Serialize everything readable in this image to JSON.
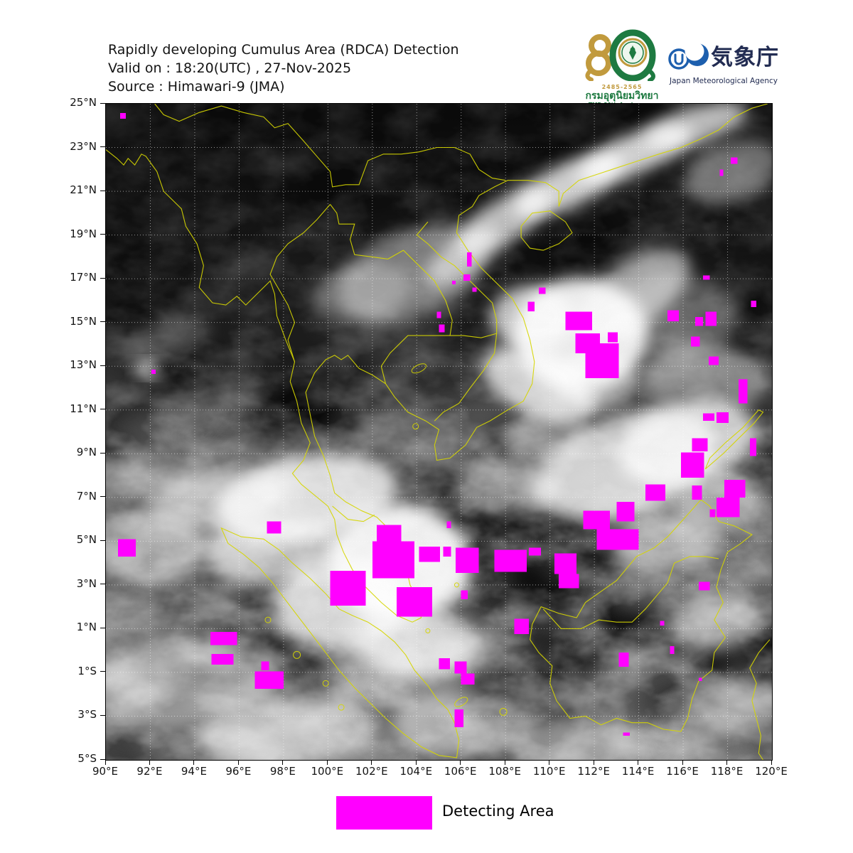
{
  "header": {
    "line1": "Rapidly developing Cumulus Area (RDCA) Detection",
    "line2": "Valid on : 18:20(UTC) , 27-Nov-2025",
    "line3": "Source : Himawari-9 (JMA)"
  },
  "logos": {
    "tmd": {
      "number": "80",
      "years": "2485-2565",
      "thai_name": "กรมอุตุนิยมวิทยา",
      "anniversary": "TMD 80th Anniversary",
      "gold": "#C19A3D",
      "green": "#1E7A41"
    },
    "jma": {
      "name_jp": "気象庁",
      "name_en": "Japan Meteorological Agency",
      "blue": "#1D5FAE",
      "navy": "#222c52"
    }
  },
  "map": {
    "extent": {
      "lon_min": 90,
      "lon_max": 120,
      "lat_max": 25,
      "lat_min": -5
    },
    "grid_step_deg": 2,
    "coastline_color": "#d6d600",
    "detection_color": "#FF00FF",
    "lat_ticks": [
      {
        "deg": 25,
        "label": "25°N"
      },
      {
        "deg": 23,
        "label": "23°N"
      },
      {
        "deg": 21,
        "label": "21°N"
      },
      {
        "deg": 19,
        "label": "19°N"
      },
      {
        "deg": 17,
        "label": "17°N"
      },
      {
        "deg": 15,
        "label": "15°N"
      },
      {
        "deg": 13,
        "label": "13°N"
      },
      {
        "deg": 11,
        "label": "11°N"
      },
      {
        "deg": 9,
        "label": "9°N"
      },
      {
        "deg": 7,
        "label": "7°N"
      },
      {
        "deg": 5,
        "label": "5°N"
      },
      {
        "deg": 3,
        "label": "3°N"
      },
      {
        "deg": 1,
        "label": "1°N"
      },
      {
        "deg": -1,
        "label": "1°S"
      },
      {
        "deg": -3,
        "label": "3°S"
      },
      {
        "deg": -5,
        "label": "5°S"
      }
    ],
    "lon_ticks": [
      {
        "deg": 90,
        "label": "90°E"
      },
      {
        "deg": 92,
        "label": "92°E"
      },
      {
        "deg": 94,
        "label": "94°E"
      },
      {
        "deg": 96,
        "label": "96°E"
      },
      {
        "deg": 98,
        "label": "98°E"
      },
      {
        "deg": 100,
        "label": "100°E"
      },
      {
        "deg": 102,
        "label": "102°E"
      },
      {
        "deg": 104,
        "label": "104°E"
      },
      {
        "deg": 106,
        "label": "106°E"
      },
      {
        "deg": 108,
        "label": "108°E"
      },
      {
        "deg": 110,
        "label": "110°E"
      },
      {
        "deg": 112,
        "label": "112°E"
      },
      {
        "deg": 114,
        "label": "114°E"
      },
      {
        "deg": 116,
        "label": "116°E"
      },
      {
        "deg": 118,
        "label": "118°E"
      },
      {
        "deg": 120,
        "label": "120°E"
      }
    ],
    "detections": [
      [
        90.64,
        24.58,
        0.26,
        0.26
      ],
      [
        92.05,
        12.85,
        0.2,
        0.2
      ],
      [
        90.55,
        5.1,
        0.8,
        0.8
      ],
      [
        97.25,
        5.9,
        0.65,
        0.55
      ],
      [
        94.7,
        0.85,
        1.2,
        0.6
      ],
      [
        94.75,
        -0.15,
        1.0,
        0.5
      ],
      [
        97.0,
        -0.5,
        0.35,
        0.4
      ],
      [
        96.7,
        -0.95,
        1.3,
        0.8
      ],
      [
        100.1,
        3.65,
        1.6,
        1.6
      ],
      [
        102.2,
        5.75,
        1.1,
        0.9
      ],
      [
        102.0,
        5.0,
        1.9,
        1.7
      ],
      [
        103.1,
        2.9,
        1.6,
        1.35
      ],
      [
        104.1,
        4.75,
        0.95,
        0.7
      ],
      [
        105.2,
        4.75,
        0.35,
        0.45
      ],
      [
        105.75,
        4.7,
        1.05,
        1.15
      ],
      [
        105.35,
        5.9,
        0.2,
        0.3
      ],
      [
        106.0,
        2.75,
        0.3,
        0.4
      ],
      [
        107.5,
        4.6,
        1.45,
        1.0
      ],
      [
        109.05,
        4.7,
        0.55,
        0.35
      ],
      [
        108.4,
        1.45,
        0.65,
        0.7
      ],
      [
        105.0,
        -0.35,
        0.5,
        0.5
      ],
      [
        105.7,
        -0.5,
        0.55,
        0.55
      ],
      [
        106.0,
        -1.05,
        0.6,
        0.5
      ],
      [
        105.7,
        -2.7,
        0.4,
        0.8
      ],
      [
        110.2,
        4.45,
        1.0,
        0.95
      ],
      [
        110.4,
        3.5,
        0.9,
        0.65
      ],
      [
        111.5,
        6.4,
        1.2,
        0.85
      ],
      [
        112.1,
        5.55,
        1.9,
        0.95
      ],
      [
        113.0,
        6.8,
        0.8,
        0.9
      ],
      [
        114.3,
        7.6,
        0.9,
        0.75
      ],
      [
        113.1,
        -0.1,
        0.45,
        0.65
      ],
      [
        114.95,
        1.35,
        0.2,
        0.2
      ],
      [
        115.4,
        0.2,
        0.2,
        0.35
      ],
      [
        116.7,
        -1.25,
        0.15,
        0.15
      ],
      [
        113.3,
        -3.75,
        0.3,
        0.15
      ],
      [
        116.7,
        3.15,
        0.5,
        0.4
      ],
      [
        115.9,
        9.05,
        1.05,
        1.15
      ],
      [
        116.4,
        9.7,
        0.7,
        0.6
      ],
      [
        116.4,
        7.55,
        0.45,
        0.65
      ],
      [
        117.2,
        6.45,
        0.25,
        0.35
      ],
      [
        117.85,
        7.8,
        0.95,
        0.8
      ],
      [
        117.5,
        7.0,
        1.05,
        0.9
      ],
      [
        119.0,
        9.7,
        0.3,
        0.8
      ],
      [
        116.9,
        10.85,
        0.5,
        0.35
      ],
      [
        117.5,
        10.9,
        0.55,
        0.5
      ],
      [
        118.5,
        12.4,
        0.4,
        1.1
      ],
      [
        117.15,
        13.45,
        0.45,
        0.4
      ],
      [
        116.35,
        14.35,
        0.4,
        0.45
      ],
      [
        115.3,
        15.55,
        0.5,
        0.5
      ],
      [
        116.55,
        15.25,
        0.35,
        0.4
      ],
      [
        117.0,
        15.5,
        0.5,
        0.65
      ],
      [
        116.9,
        17.15,
        0.3,
        0.2
      ],
      [
        119.05,
        16.0,
        0.25,
        0.3
      ],
      [
        118.15,
        22.55,
        0.3,
        0.3
      ],
      [
        117.65,
        22.0,
        0.15,
        0.3
      ],
      [
        110.7,
        15.5,
        1.2,
        0.85
      ],
      [
        111.15,
        14.5,
        1.1,
        0.9
      ],
      [
        111.6,
        14.05,
        1.5,
        1.6
      ],
      [
        112.6,
        14.55,
        0.45,
        0.45
      ],
      [
        109.5,
        16.6,
        0.3,
        0.3
      ],
      [
        109.0,
        15.95,
        0.3,
        0.45
      ],
      [
        106.27,
        18.2,
        0.2,
        0.65
      ],
      [
        106.1,
        17.2,
        0.3,
        0.3
      ],
      [
        105.6,
        16.9,
        0.16,
        0.16
      ],
      [
        106.5,
        16.6,
        0.2,
        0.2
      ],
      [
        104.9,
        15.5,
        0.2,
        0.3
      ],
      [
        105.0,
        14.9,
        0.25,
        0.35
      ]
    ]
  },
  "legend": {
    "label": "Detecting Area",
    "swatch_color": "#FF00FF"
  }
}
